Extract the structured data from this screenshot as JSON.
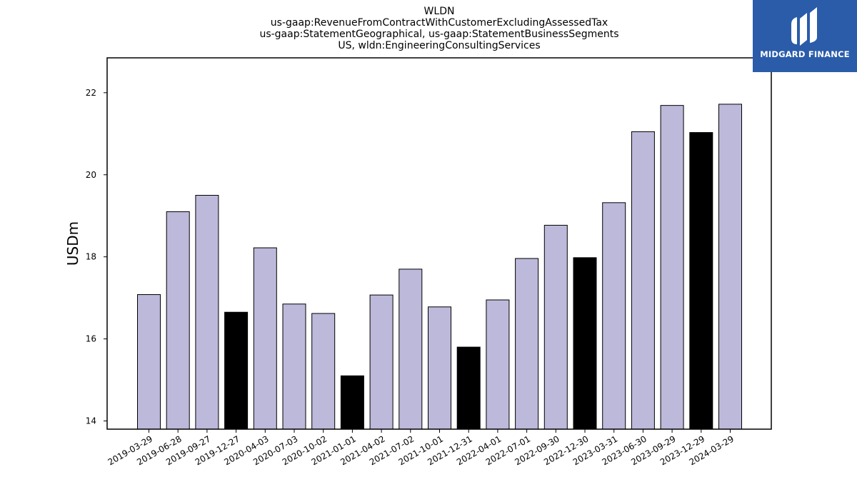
{
  "title_lines": [
    "WLDN",
    "us-gaap:RevenueFromContractWithCustomerExcludingAssessedTax",
    "us-gaap:StatementGeographical, us-gaap:StatementBusinessSegments",
    "US, wldn:EngineeringConsultingServices"
  ],
  "logo": {
    "text": "MIDGARD FINANCE",
    "background": "#2a5caa"
  },
  "colors": {
    "bar_default": "#bcb9da",
    "bar_highlight": "#000000",
    "edge": "#000000"
  },
  "chart_data": {
    "type": "bar",
    "title": "WLDN",
    "xlabel": "",
    "ylabel": "USDm",
    "ylim": [
      13.8,
      22.85
    ],
    "yticks": [
      14,
      16,
      18,
      20,
      22
    ],
    "grid": false,
    "legend": "none",
    "categories": [
      "2019-03-29",
      "2019-06-28",
      "2019-09-27",
      "2019-12-27",
      "2020-04-03",
      "2020-07-03",
      "2020-10-02",
      "2021-01-01",
      "2021-04-02",
      "2021-07-02",
      "2021-10-01",
      "2021-12-31",
      "2022-04-01",
      "2022-07-01",
      "2022-09-30",
      "2022-12-30",
      "2023-03-31",
      "2023-06-30",
      "2023-09-29",
      "2023-12-29",
      "2024-03-29"
    ],
    "values": [
      17.08,
      19.1,
      19.5,
      16.65,
      18.22,
      16.85,
      16.62,
      15.1,
      17.07,
      17.7,
      16.78,
      15.8,
      16.95,
      17.96,
      18.77,
      17.98,
      19.32,
      21.05,
      21.69,
      21.03,
      21.72
    ],
    "highlight": [
      false,
      false,
      false,
      true,
      false,
      false,
      false,
      true,
      false,
      false,
      false,
      true,
      false,
      false,
      false,
      true,
      false,
      false,
      false,
      true,
      false
    ]
  }
}
